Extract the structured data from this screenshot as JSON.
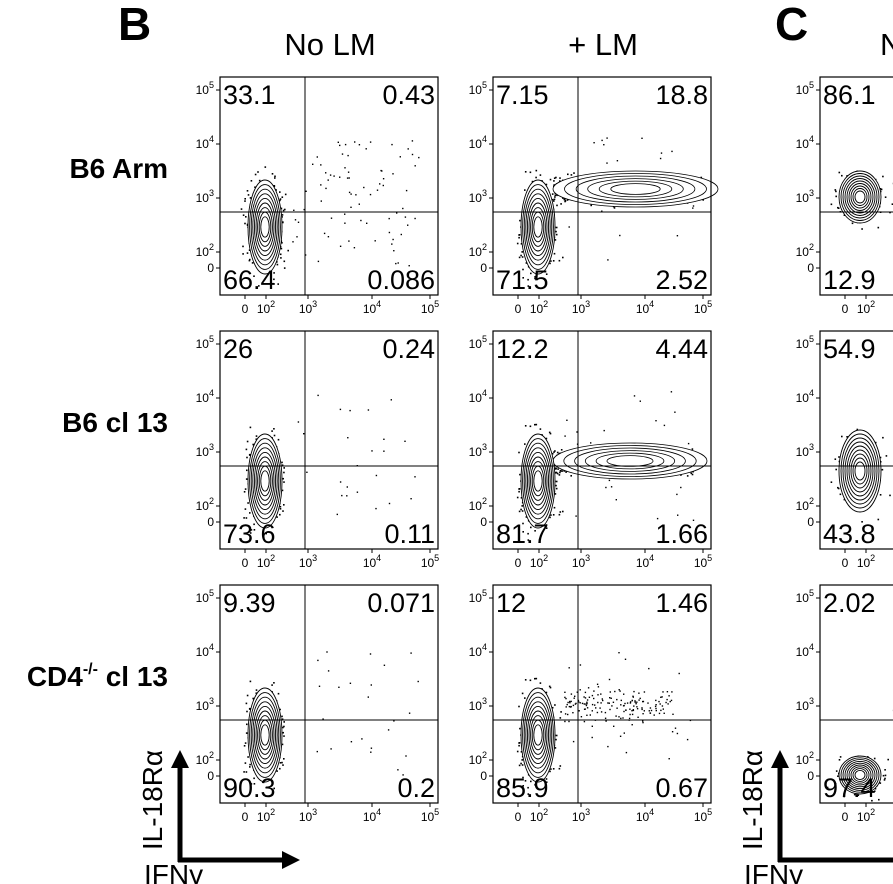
{
  "panel_letters": [
    "B",
    "C"
  ],
  "column_titles": [
    "No LM",
    "+ LM",
    "N"
  ],
  "row_labels": [
    {
      "main": "B6 Arm",
      "sup": "",
      "tail": ""
    },
    {
      "main": "B6 cl 13",
      "sup": "",
      "tail": ""
    },
    {
      "main": "CD4",
      "sup": "-/-",
      "tail": " cl 13"
    }
  ],
  "axis_words": {
    "y": "IL-18Rα",
    "x": "IFNγ"
  },
  "y_ticks": [
    {
      "base": "10",
      "exp": "5"
    },
    {
      "base": "10",
      "exp": "4"
    },
    {
      "base": "10",
      "exp": "3"
    },
    {
      "base": "10",
      "exp": "2"
    },
    {
      "base": "0",
      "exp": ""
    }
  ],
  "x_ticks": [
    {
      "base": "0",
      "exp": ""
    },
    {
      "base": "10",
      "exp": "2"
    },
    {
      "base": "10",
      "exp": "3"
    },
    {
      "base": "10",
      "exp": "4"
    },
    {
      "base": "10",
      "exp": "5"
    }
  ],
  "colors": {
    "ink": "#000000",
    "background": "#ffffff"
  },
  "chart_data": {
    "type": "table",
    "description_of_values": "quadrant percentages: upper-left, upper-right, lower-left, lower-right",
    "panels": [
      {
        "row": "B6 Arm",
        "column": "No LM",
        "ul": "33.1",
        "ur": "0.43",
        "ll": "66.4",
        "lr": "0.086"
      },
      {
        "row": "B6 Arm",
        "column": "+ LM",
        "ul": "7.15",
        "ur": "18.8",
        "ll": "71.5",
        "lr": "2.52"
      },
      {
        "row": "B6 Arm",
        "column": "N",
        "ul": "86.1",
        "ur": "",
        "ll": "12.9",
        "lr": ""
      },
      {
        "row": "B6 cl 13",
        "column": "No LM",
        "ul": "26",
        "ur": "0.24",
        "ll": "73.6",
        "lr": "0.11"
      },
      {
        "row": "B6 cl 13",
        "column": "+ LM",
        "ul": "12.2",
        "ur": "4.44",
        "ll": "81.7",
        "lr": "1.66"
      },
      {
        "row": "B6 cl 13",
        "column": "N",
        "ul": "54.9",
        "ur": "",
        "ll": "43.8",
        "lr": ""
      },
      {
        "row": "CD4-/- cl 13",
        "column": "No LM",
        "ul": "9.39",
        "ur": "0.071",
        "ll": "90.3",
        "lr": "0.2"
      },
      {
        "row": "CD4-/- cl 13",
        "column": "+ LM",
        "ul": "12",
        "ur": "1.46",
        "ll": "85.9",
        "lr": "0.67"
      },
      {
        "row": "CD4-/- cl 13",
        "column": "N",
        "ul": "2.02",
        "ur": "",
        "ll": "97.4",
        "lr": ""
      }
    ]
  }
}
